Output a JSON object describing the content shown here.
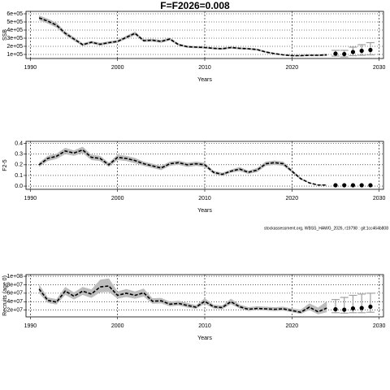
{
  "chart_data": [
    {
      "type": "line",
      "title": "F=F2026=0.008",
      "ylabel": "SSB",
      "xlabel": "Years",
      "xlim": [
        1989.5,
        2030.5
      ],
      "xticks": [
        1990,
        2000,
        2010,
        2020,
        2030
      ],
      "ylim": [
        50000,
        630000
      ],
      "yticks": [
        {
          "value": 100000,
          "label": "1e+05"
        },
        {
          "value": 200000,
          "label": "2e+05"
        },
        {
          "value": 300000,
          "label": "3e+05"
        },
        {
          "value": 400000,
          "label": "4e+05"
        },
        {
          "value": 500000,
          "label": "5e+05"
        },
        {
          "value": 600000,
          "label": "6e+05"
        }
      ],
      "grid": true,
      "color": "#000000",
      "band_color": "#bdbdbd",
      "error_color": "#a0a0a0",
      "x": [
        1991,
        1992,
        1993,
        1994,
        1995,
        1996,
        1997,
        1998,
        1999,
        2000,
        2001,
        2002,
        2003,
        2004,
        2005,
        2006,
        2007,
        2008,
        2009,
        2010,
        2011,
        2012,
        2013,
        2014,
        2015,
        2016,
        2017,
        2018,
        2019,
        2020,
        2021,
        2022,
        2023,
        2024
      ],
      "values": [
        550000,
        510000,
        460000,
        360000,
        290000,
        220000,
        250000,
        225000,
        245000,
        260000,
        310000,
        360000,
        270000,
        275000,
        260000,
        290000,
        220000,
        195000,
        190000,
        185000,
        175000,
        170000,
        185000,
        175000,
        170000,
        160000,
        130000,
        110000,
        95000,
        85000,
        85000,
        90000,
        90000,
        95000
      ],
      "lower": [
        520000,
        480000,
        430000,
        335000,
        268000,
        203000,
        232000,
        208000,
        228000,
        242000,
        290000,
        338000,
        252000,
        257000,
        243000,
        272000,
        205000,
        181000,
        176000,
        172000,
        162000,
        157000,
        171000,
        162000,
        157000,
        147000,
        119000,
        100000,
        86000,
        76000,
        75000,
        79000,
        78000,
        80000
      ],
      "upper": [
        580000,
        540000,
        490000,
        385000,
        312000,
        237000,
        268000,
        242000,
        262000,
        278000,
        330000,
        382000,
        288000,
        293000,
        277000,
        308000,
        235000,
        209000,
        204000,
        198000,
        188000,
        183000,
        199000,
        188000,
        183000,
        173000,
        141000,
        120000,
        104000,
        94000,
        95000,
        101000,
        102000,
        110000
      ],
      "proj_x": [
        2025,
        2026,
        2027,
        2028,
        2029
      ],
      "proj_values": [
        110000,
        105000,
        130000,
        145000,
        155000
      ],
      "proj_lower": [
        80000,
        70000,
        85000,
        90000,
        95000
      ],
      "proj_upper": [
        150000,
        150000,
        190000,
        220000,
        245000
      ]
    },
    {
      "type": "line",
      "ylabel": "F2-5",
      "xlabel": "Years",
      "note": "stockassessment.org, WBSS_HAWG_2026, r19798 : git:1cc464b808",
      "xlim": [
        1989.5,
        2030.5
      ],
      "xticks": [
        1990,
        2000,
        2010,
        2020,
        2030
      ],
      "ylim": [
        -0.03,
        0.42
      ],
      "yticks": [
        {
          "value": 0,
          "label": "0.0"
        },
        0.1,
        0.2,
        0.3,
        0.4
      ],
      "grid": true,
      "color": "#000000",
      "band_color": "#bdbdbd",
      "error_color": "#a0a0a0",
      "x": [
        1991,
        1992,
        1993,
        1994,
        1995,
        1996,
        1997,
        1998,
        1999,
        2000,
        2001,
        2002,
        2003,
        2004,
        2005,
        2006,
        2007,
        2008,
        2009,
        2010,
        2011,
        2012,
        2013,
        2014,
        2015,
        2016,
        2017,
        2018,
        2019,
        2020,
        2021,
        2022,
        2023,
        2024
      ],
      "values": [
        0.2,
        0.26,
        0.28,
        0.33,
        0.31,
        0.34,
        0.27,
        0.26,
        0.2,
        0.27,
        0.26,
        0.24,
        0.21,
        0.19,
        0.17,
        0.21,
        0.22,
        0.2,
        0.21,
        0.2,
        0.13,
        0.11,
        0.14,
        0.16,
        0.13,
        0.15,
        0.21,
        0.22,
        0.21,
        0.14,
        0.07,
        0.03,
        0.01,
        0.01
      ],
      "lower": [
        0.18,
        0.235,
        0.255,
        0.3,
        0.285,
        0.31,
        0.245,
        0.235,
        0.18,
        0.245,
        0.235,
        0.215,
        0.19,
        0.17,
        0.15,
        0.19,
        0.2,
        0.18,
        0.19,
        0.18,
        0.115,
        0.095,
        0.125,
        0.14,
        0.115,
        0.13,
        0.19,
        0.2,
        0.19,
        0.125,
        0.06,
        0.025,
        0.007,
        0.006
      ],
      "upper": [
        0.22,
        0.285,
        0.305,
        0.36,
        0.335,
        0.37,
        0.295,
        0.285,
        0.22,
        0.295,
        0.285,
        0.265,
        0.23,
        0.21,
        0.19,
        0.23,
        0.24,
        0.22,
        0.23,
        0.22,
        0.145,
        0.125,
        0.155,
        0.18,
        0.145,
        0.17,
        0.23,
        0.24,
        0.23,
        0.155,
        0.08,
        0.035,
        0.013,
        0.014
      ],
      "proj_x": [
        2025,
        2026,
        2027,
        2028,
        2029
      ],
      "proj_values": [
        0.008,
        0.008,
        0.008,
        0.008,
        0.008
      ]
    },
    {
      "type": "line",
      "ylabel": "Recruits (age 0)",
      "xlabel": "Years",
      "xlim": [
        1989.5,
        2030.5
      ],
      "xticks": [
        1990,
        2000,
        2010,
        2020,
        2030
      ],
      "ylim": [
        4000000,
        104000000
      ],
      "yticks": [
        {
          "value": 20000000,
          "label": "2e+07"
        },
        {
          "value": 40000000,
          "label": "4e+07"
        },
        {
          "value": 60000000,
          "label": "6e+07"
        },
        {
          "value": 80000000,
          "label": "8e+07"
        },
        {
          "value": 100000000,
          "label": "1e+08"
        }
      ],
      "grid": true,
      "color": "#000000",
      "band_color": "#bdbdbd",
      "error_color": "#a0a0a0",
      "x": [
        1991,
        1992,
        1993,
        1994,
        1995,
        1996,
        1997,
        1998,
        1999,
        2000,
        2001,
        2002,
        2003,
        2004,
        2005,
        2006,
        2007,
        2008,
        2009,
        2010,
        2011,
        2012,
        2013,
        2014,
        2015,
        2016,
        2017,
        2018,
        2019,
        2020,
        2021,
        2022,
        2023,
        2024
      ],
      "values": [
        70000000,
        43000000,
        39000000,
        65000000,
        53000000,
        65000000,
        58000000,
        75000000,
        77000000,
        55000000,
        60000000,
        55000000,
        61000000,
        41000000,
        42000000,
        34000000,
        36000000,
        31000000,
        27000000,
        41000000,
        28000000,
        26000000,
        40000000,
        28000000,
        22000000,
        24000000,
        23000000,
        22000000,
        23000000,
        19000000,
        15000000,
        27000000,
        16000000,
        25000000
      ],
      "lower": [
        60000000,
        37000000,
        33000000,
        56000000,
        45000000,
        56000000,
        49000000,
        62000000,
        63000000,
        47000000,
        51000000,
        47000000,
        52000000,
        35000000,
        36000000,
        29000000,
        31000000,
        26000000,
        23000000,
        35000000,
        24000000,
        22000000,
        34000000,
        24000000,
        18000000,
        20000000,
        19000000,
        18000000,
        19000000,
        15000000,
        11000000,
        20000000,
        10000000,
        15000000
      ],
      "upper": [
        81000000,
        50000000,
        46000000,
        75000000,
        62000000,
        75000000,
        69000000,
        92000000,
        95000000,
        64000000,
        70000000,
        64000000,
        71000000,
        48000000,
        49000000,
        40000000,
        42000000,
        37000000,
        32000000,
        48000000,
        33000000,
        31000000,
        47000000,
        33000000,
        27000000,
        29000000,
        28000000,
        27000000,
        28000000,
        24000000,
        21000000,
        36000000,
        26000000,
        41000000
      ],
      "proj_x": [
        2025,
        2026,
        2027,
        2028,
        2029
      ],
      "proj_values": [
        22000000,
        21000000,
        24000000,
        25000000,
        28000000
      ],
      "proj_lower": [
        14000000,
        13000000,
        14000000,
        14000000,
        15000000
      ],
      "proj_upper": [
        45000000,
        50000000,
        55000000,
        58000000,
        60000000
      ]
    }
  ]
}
